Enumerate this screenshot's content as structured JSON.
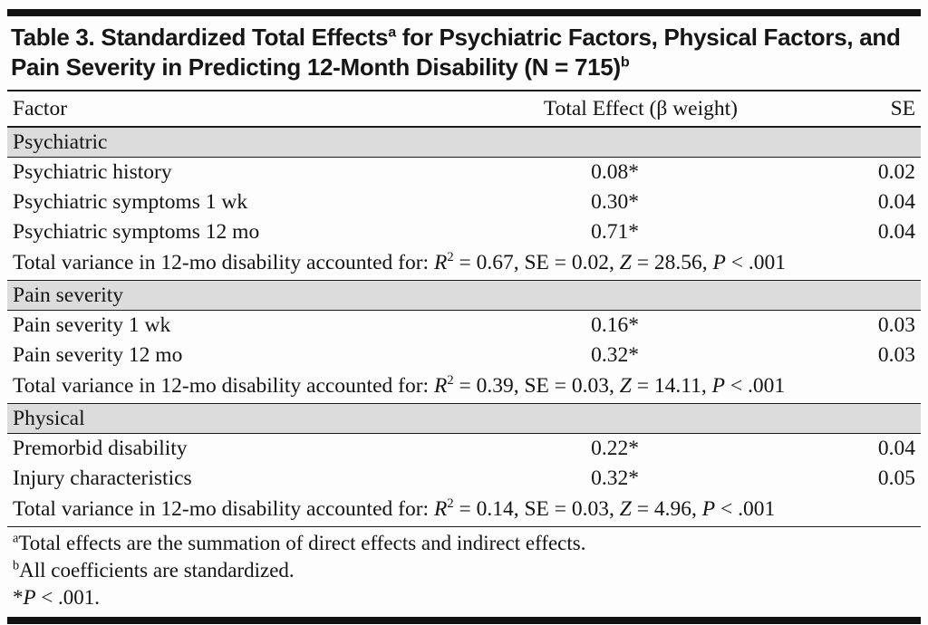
{
  "title_segments": [
    {
      "t": "Table 3. Standardized Total Effects"
    },
    {
      "t": "a",
      "sup": true
    },
    {
      "t": " for Psychiatric Factors, Physical Factors, and Pain Severity in Predicting 12-Month Disability (N = 715)"
    },
    {
      "t": "b",
      "sup": true
    }
  ],
  "table": {
    "headers": {
      "factor": "Factor",
      "effect": "Total Effect (β weight)",
      "se": "SE"
    },
    "sections": [
      {
        "name": "Psychiatric",
        "rows": [
          {
            "factor": "Psychiatric history",
            "effect": "0.08*",
            "se": "0.02"
          },
          {
            "factor": "Psychiatric symptoms 1 wk",
            "effect": "0.30*",
            "se": "0.04"
          },
          {
            "factor": "Psychiatric symptoms 12 mo",
            "effect": "0.71*",
            "se": "0.04"
          }
        ],
        "variance_segments": [
          {
            "t": "Total variance in 12-mo disability accounted for: "
          },
          {
            "t": "R",
            "i": true
          },
          {
            "t": "2",
            "sup": true
          },
          {
            "t": " = 0.67, SE = 0.02, "
          },
          {
            "t": "Z",
            "i": true
          },
          {
            "t": " = 28.56, "
          },
          {
            "t": "P",
            "i": true
          },
          {
            "t": " < .001"
          }
        ]
      },
      {
        "name": "Pain severity",
        "rows": [
          {
            "factor": "Pain severity 1 wk",
            "effect": "0.16*",
            "se": "0.03"
          },
          {
            "factor": "Pain severity 12 mo",
            "effect": "0.32*",
            "se": "0.03"
          }
        ],
        "variance_segments": [
          {
            "t": "Total variance in 12-mo disability accounted for: "
          },
          {
            "t": "R",
            "i": true
          },
          {
            "t": "2",
            "sup": true
          },
          {
            "t": " = 0.39, SE = 0.03, "
          },
          {
            "t": "Z",
            "i": true
          },
          {
            "t": " = 14.11, "
          },
          {
            "t": "P",
            "i": true
          },
          {
            "t": " < .001"
          }
        ]
      },
      {
        "name": "Physical",
        "rows": [
          {
            "factor": "Premorbid disability",
            "effect": "0.22*",
            "se": "0.04"
          },
          {
            "factor": "Injury characteristics",
            "effect": "0.32*",
            "se": "0.05"
          }
        ],
        "variance_segments": [
          {
            "t": "Total variance in 12-mo disability accounted for: "
          },
          {
            "t": "R",
            "i": true
          },
          {
            "t": "2",
            "sup": true
          },
          {
            "t": " = 0.14, SE = 0.03, "
          },
          {
            "t": "Z",
            "i": true
          },
          {
            "t": " = 4.96, "
          },
          {
            "t": "P",
            "i": true
          },
          {
            "t": " < .001"
          }
        ]
      }
    ]
  },
  "footnotes": [
    [
      {
        "t": "a",
        "sup": true
      },
      {
        "t": "Total effects are the summation of direct effects and indirect effects."
      }
    ],
    [
      {
        "t": "b",
        "sup": true
      },
      {
        "t": "All coefficients are standardized."
      }
    ],
    [
      {
        "t": "*"
      },
      {
        "t": "P",
        "i": true
      },
      {
        "t": " < .001."
      }
    ]
  ],
  "colors": {
    "section_shade": "#dcdcdc",
    "rule": "#1c1c1c"
  }
}
